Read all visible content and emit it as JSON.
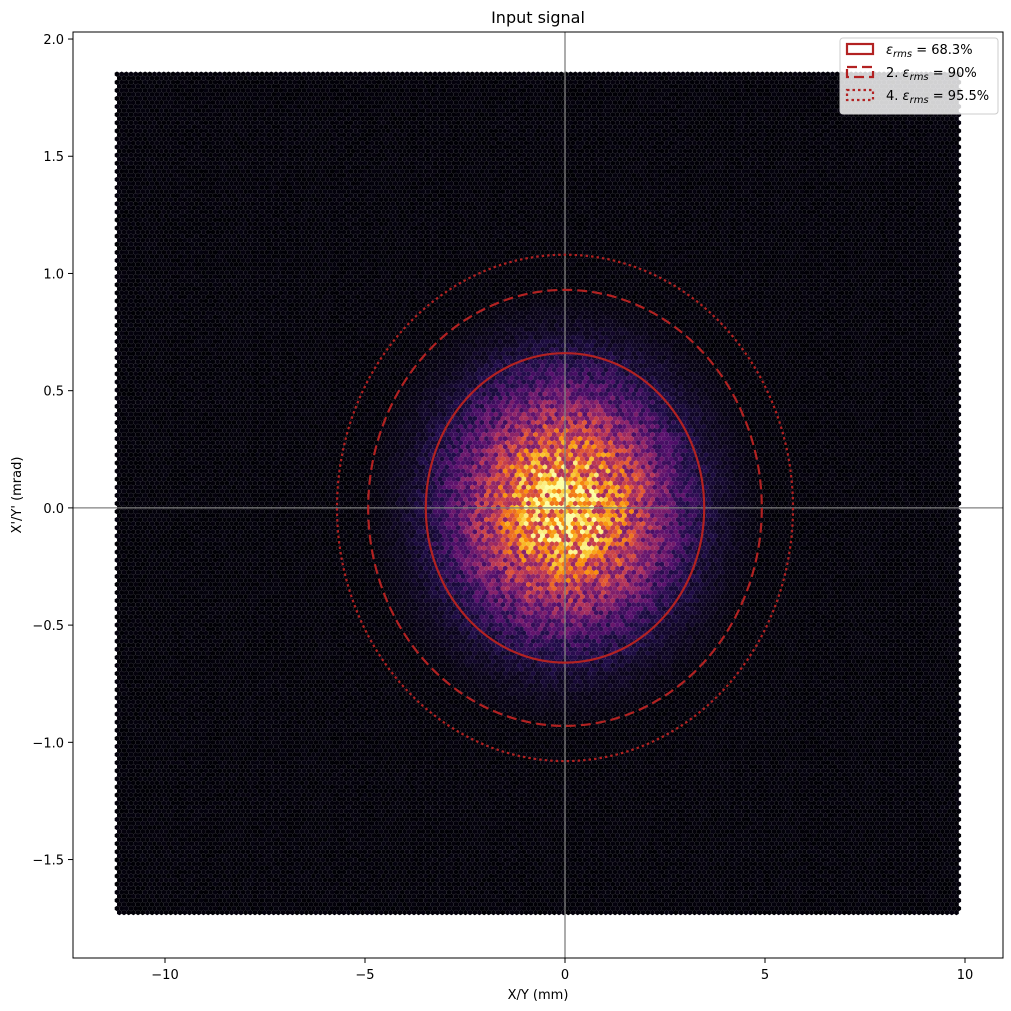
{
  "chart_data": {
    "type": "heatmap",
    "subtype": "hexbin",
    "title": "Input signal",
    "xlabel": "X/Y (mm)",
    "ylabel": "X'/Y' (mrad)",
    "xlim": [
      -12.3,
      10.95
    ],
    "ylim": [
      -1.92,
      2.03
    ],
    "xticks": [
      -10,
      -5,
      0,
      5,
      10
    ],
    "xtick_labels": [
      "−10",
      "−5",
      "0",
      "5",
      "10"
    ],
    "yticks": [
      -1.5,
      -1.0,
      -0.5,
      0.0,
      0.5,
      1.0,
      1.5,
      2.0
    ],
    "ytick_labels": [
      "−1.5",
      "−1.0",
      "−0.5",
      "0.0",
      "0.5",
      "1.0",
      "1.5",
      "2.0"
    ],
    "hexbin_extent": {
      "x": [
        -11.2,
        9.85
      ],
      "y": [
        -1.73,
        1.85
      ]
    },
    "distribution": {
      "center": [
        0,
        0
      ],
      "sigma_x_mm": 1.75,
      "sigma_y_mrad": 0.33
    },
    "colormap": "inferno",
    "crosshair": {
      "x": 0,
      "y": 0,
      "color": "#808080"
    },
    "ellipses": [
      {
        "label_prefix": "",
        "label_value": "= 68.3%",
        "style": "solid",
        "center": [
          0,
          0
        ],
        "semi_x": 3.48,
        "semi_y": 0.66
      },
      {
        "label_prefix": "2.",
        "label_value": "= 90%",
        "style": "dashed",
        "center": [
          0,
          0
        ],
        "semi_x": 4.92,
        "semi_y": 0.93
      },
      {
        "label_prefix": "4.",
        "label_value": "= 95.5%",
        "style": "dotted",
        "center": [
          0,
          0
        ],
        "semi_x": 5.7,
        "semi_y": 1.08
      }
    ],
    "ellipse_color": "#b22222",
    "legend_symbol": "ε",
    "legend_subscript": "rms",
    "legend_loc": "upper right"
  }
}
